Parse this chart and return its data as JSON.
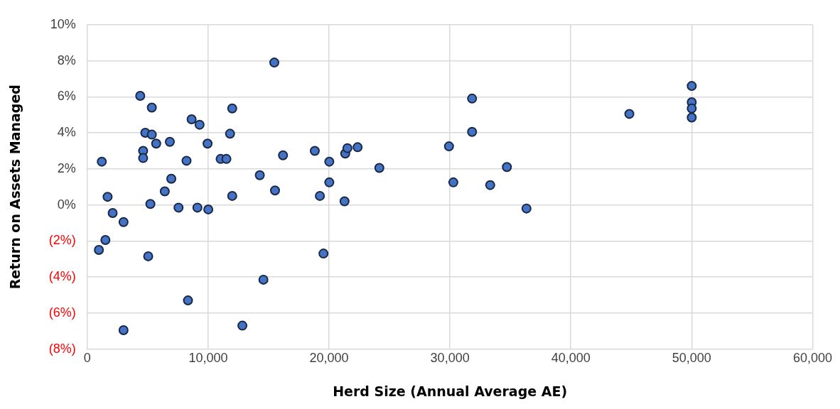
{
  "chart_data": {
    "type": "scatter",
    "xlabel": "Herd Size (Annual Average AE)",
    "ylabel": "Return on Assets Managed",
    "marker": "circle",
    "grid": true,
    "xlim": [
      0,
      60000
    ],
    "xticks": [
      0,
      {
        "value": 10000,
        "label": "10,000"
      },
      {
        "value": 20000,
        "label": "20,000"
      },
      {
        "value": 30000,
        "label": "30,000"
      },
      {
        "value": 40000,
        "label": "40,000"
      },
      {
        "value": 50000,
        "label": "50,000"
      },
      {
        "value": 60000,
        "label": "60,000"
      }
    ],
    "ylim": [
      -8,
      10
    ],
    "yticks": [
      {
        "value": -8,
        "label": "(8%)"
      },
      {
        "value": -6,
        "label": "(6%)"
      },
      {
        "value": -4,
        "label": "(4%)"
      },
      {
        "value": -2,
        "label": "(2%)"
      },
      {
        "value": 0,
        "label": "0%"
      },
      {
        "value": 2,
        "label": "2%"
      },
      {
        "value": 4,
        "label": "4%"
      },
      {
        "value": 6,
        "label": "6%"
      },
      {
        "value": 8,
        "label": "8%"
      },
      {
        "value": 10,
        "label": "10%"
      }
    ],
    "series": [
      {
        "color": "#4472c4",
        "x": [
          960,
          1200,
          1500,
          1680,
          2100,
          3000,
          3000,
          4380,
          4620,
          4620,
          4800,
          5040,
          5220,
          5340,
          5340,
          5700,
          6410,
          6830,
          6950,
          7550,
          8210,
          8330,
          8630,
          9110,
          9290,
          9950,
          10010,
          11030,
          11510,
          11810,
          11990,
          11990,
          12830,
          14270,
          14570,
          15470,
          15530,
          16190,
          18820,
          19240,
          19540,
          20020,
          20020,
          21340,
          21520,
          21280,
          22360,
          24160,
          29920,
          30280,
          31830,
          31830,
          33330,
          34710,
          36330,
          44840,
          50000,
          50000,
          50000,
          50000
        ],
        "values": [
          -2.5,
          2.4,
          -1.95,
          0.45,
          -0.45,
          -0.95,
          -6.95,
          6.05,
          3.0,
          2.6,
          4.0,
          -2.85,
          0.05,
          5.4,
          3.9,
          3.4,
          0.75,
          3.5,
          1.45,
          -0.15,
          2.45,
          -5.3,
          4.75,
          -0.15,
          4.45,
          3.4,
          -0.25,
          2.55,
          2.55,
          3.95,
          5.35,
          0.5,
          -6.7,
          1.65,
          -4.15,
          7.9,
          0.8,
          2.75,
          3.0,
          0.5,
          -2.7,
          1.25,
          2.4,
          2.85,
          3.15,
          0.2,
          3.2,
          2.05,
          3.25,
          1.25,
          5.9,
          4.05,
          1.1,
          2.1,
          -0.2,
          5.05,
          6.6,
          5.7,
          5.35,
          4.85
        ]
      }
    ]
  }
}
